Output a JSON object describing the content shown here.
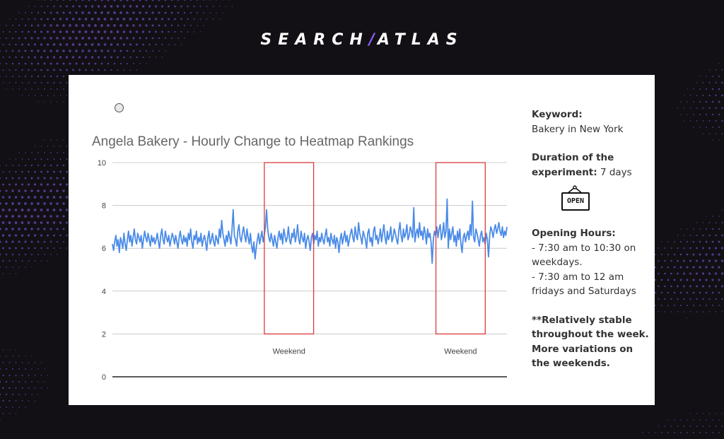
{
  "brand": {
    "left": "SEARCH",
    "slash": "/",
    "right": "ATLAS"
  },
  "colors": {
    "accent": "#8b5cf6",
    "series": "#4a8be8",
    "highlight": "#d93b3b",
    "background": "#121014"
  },
  "chart_data": {
    "type": "line",
    "title": "Angela Bakery - Hourly Change to Heatmap Rankings",
    "xlabel": "",
    "ylabel": "",
    "ylim": [
      0,
      10
    ],
    "yticks": [
      0,
      2,
      4,
      6,
      8,
      10
    ],
    "grid": true,
    "series": [
      {
        "values": [
          6.2,
          5.9,
          6.3,
          6.6,
          6.1,
          6.4,
          5.8,
          6.5,
          6.3,
          6.0,
          6.7,
          6.2,
          5.9,
          6.4,
          6.8,
          6.3,
          6.6,
          6.1,
          6.5,
          6.9,
          6.4,
          6.2,
          6.7,
          6.5,
          6.3,
          6.6,
          6.0,
          6.4,
          6.8,
          6.5,
          6.3,
          6.7,
          6.4,
          6.1,
          6.6,
          6.3,
          6.5,
          6.2,
          6.4,
          6.7,
          6.3,
          6.0,
          6.6,
          6.9,
          6.4,
          6.2,
          6.8,
          6.5,
          6.3,
          6.6,
          6.1,
          6.4,
          6.7,
          6.5,
          6.2,
          6.6,
          6.3,
          6.0,
          6.5,
          6.8,
          6.4,
          6.2,
          6.6,
          6.3,
          6.5,
          6.1,
          6.7,
          6.4,
          6.9,
          6.3,
          6.0,
          6.6,
          6.4,
          6.8,
          6.2,
          6.5,
          6.3,
          6.7,
          6.1,
          6.4,
          6.6,
          6.3,
          5.9,
          6.5,
          6.8,
          6.2,
          6.4,
          6.7,
          6.3,
          6.1,
          6.6,
          6.4,
          6.2,
          6.9,
          6.5,
          7.3,
          6.7,
          6.4,
          6.1,
          6.6,
          6.3,
          6.8,
          6.5,
          6.2,
          6.9,
          7.8,
          6.6,
          6.4,
          6.1,
          6.8,
          7.1,
          6.5,
          6.3,
          6.7,
          7.0,
          6.6,
          6.3,
          6.9,
          6.5,
          6.2,
          6.7,
          6.1,
          5.8,
          6.3,
          5.5,
          6.0,
          6.4,
          6.7,
          6.2,
          6.5,
          6.8,
          6.3,
          6.6,
          7.0,
          7.8,
          6.9,
          6.5,
          6.3,
          6.7,
          6.4,
          6.1,
          6.6,
          6.3,
          6.0,
          6.5,
          6.8,
          6.4,
          6.7,
          6.2,
          6.9,
          6.6,
          6.3,
          6.5,
          7.0,
          6.4,
          6.2,
          6.7,
          6.5,
          6.9,
          6.3,
          6.6,
          7.1,
          6.4,
          6.2,
          6.8,
          6.5,
          6.3,
          6.7,
          6.0,
          6.4,
          6.6,
          6.3,
          5.9,
          6.5,
          6.7,
          6.2,
          6.6,
          6.4,
          6.8,
          6.1,
          6.5,
          6.3,
          6.7,
          6.4,
          6.2,
          6.6,
          6.9,
          6.3,
          6.5,
          6.1,
          6.7,
          6.4,
          6.2,
          6.6,
          6.0,
          6.5,
          6.3,
          5.8,
          6.4,
          6.7,
          6.2,
          6.5,
          6.8,
          6.3,
          6.6,
          6.1,
          6.4,
          6.7,
          6.9,
          6.5,
          6.3,
          7.0,
          6.6,
          6.4,
          7.2,
          6.7,
          6.5,
          6.2,
          6.8,
          6.6,
          6.4,
          6.0,
          6.7,
          6.9,
          6.3,
          6.5,
          6.1,
          6.8,
          7.0,
          6.4,
          6.6,
          6.2,
          6.5,
          6.9,
          6.3,
          6.7,
          7.1,
          6.5,
          6.2,
          6.8,
          6.4,
          6.6,
          7.0,
          6.3,
          6.5,
          6.9,
          6.7,
          6.4,
          6.2,
          6.8,
          7.2,
          6.6,
          6.3,
          6.9,
          6.5,
          6.7,
          7.1,
          6.4,
          6.6,
          7.0,
          6.8,
          6.5,
          7.9,
          6.3,
          6.7,
          6.9,
          6.5,
          7.2,
          6.6,
          6.8,
          6.4,
          7.0,
          6.7,
          6.2,
          6.9,
          6.5,
          6.7,
          6.3,
          5.3,
          6.4,
          6.8,
          6.6,
          7.0,
          6.5,
          6.9,
          7.1,
          6.4,
          6.7,
          7.2,
          6.5,
          6.8,
          8.3,
          6.0,
          6.9,
          6.4,
          6.7,
          7.0,
          6.3,
          6.6,
          6.1,
          6.8,
          6.4,
          6.9,
          6.2,
          5.8,
          6.5,
          6.7,
          6.3,
          6.6,
          6.8,
          6.4,
          7.1,
          6.6,
          8.2,
          6.5,
          6.3,
          6.9,
          6.7,
          6.4,
          6.1,
          6.6,
          6.8,
          6.3,
          6.5,
          6.2,
          6.7,
          6.4,
          5.6,
          6.6,
          7.0,
          6.8,
          6.5,
          6.9,
          7.1,
          6.7,
          6.9,
          7.2,
          6.8,
          6.6,
          7.0,
          6.5,
          6.8,
          6.6,
          7.0
        ]
      }
    ],
    "annotations": [
      {
        "label": "Weekend",
        "x_range": [
          0.385,
          0.51
        ],
        "y_range": [
          2,
          10
        ]
      },
      {
        "label": "Weekend",
        "x_range": [
          0.82,
          0.945
        ],
        "y_range": [
          2,
          10
        ]
      }
    ]
  },
  "sidebar": {
    "keyword_label": "Keyword:",
    "keyword_value": "Bakery in New York",
    "duration_label": "Duration of the experiment:",
    "duration_value": "7 days",
    "open_sign": "OPEN",
    "hours_label": "Opening Hours:",
    "hours_line1": "- 7:30 am to 10:30 on weekdays.",
    "hours_line2": "- 7:30 am to 12 am fridays and Saturdays",
    "note": "**Relatively stable throughout the week. More variations on the weekends."
  }
}
